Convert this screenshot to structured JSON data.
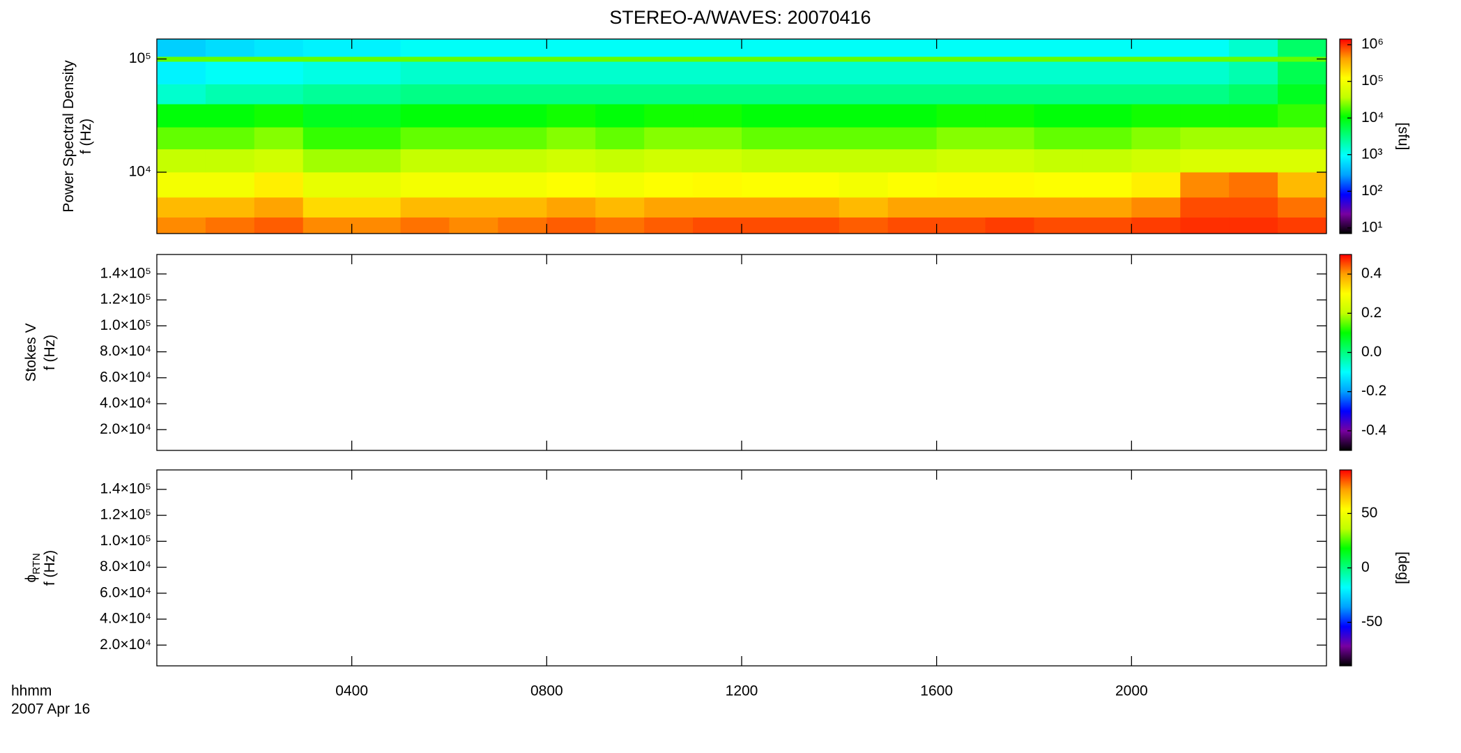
{
  "chart_data": [
    {
      "type": "spectrogram",
      "title": "STEREO-A/WAVES: 20070416",
      "ylabel": [
        "Power Spectral Density",
        "f (Hz)"
      ],
      "xlim": [
        0,
        24
      ],
      "xticks": [
        4,
        8,
        12,
        16,
        20
      ],
      "ylog": true,
      "ylim": [
        2870,
        150000
      ],
      "yticks": [
        {
          "value": 10000,
          "label": "10⁴"
        },
        {
          "value": 100000,
          "label": "10⁵"
        }
      ],
      "x_edges": [
        0,
        1,
        2,
        3,
        4,
        5,
        6,
        7,
        8,
        9,
        10,
        11,
        12,
        13,
        14,
        15,
        16,
        17,
        18,
        19,
        20,
        21,
        22,
        23,
        24
      ],
      "y_edges": [
        2870,
        4000,
        6000,
        10000,
        16000,
        25000,
        40000,
        60000,
        95000,
        105000,
        150000
      ],
      "values": [
        [
          500000.0,
          600000.0,
          700000.0,
          500000.0,
          500000.0,
          600000.0,
          500000.0,
          600000.0,
          700000.0,
          600000.0,
          700000.0,
          800000.0,
          800000.0,
          800000.0,
          700000.0,
          800000.0,
          800000.0,
          900000.0,
          800000.0,
          800000.0,
          900000.0,
          1000000.0,
          1000000.0,
          900000.0
        ],
        [
          300000.0,
          300000.0,
          400000.0,
          200000.0,
          200000.0,
          300000.0,
          300000.0,
          300000.0,
          400000.0,
          300000.0,
          400000.0,
          400000.0,
          400000.0,
          400000.0,
          300000.0,
          400000.0,
          400000.0,
          400000.0,
          400000.0,
          400000.0,
          500000.0,
          800000.0,
          800000.0,
          600000.0
        ],
        [
          100000.0,
          100000.0,
          150000.0,
          80000.0,
          80000.0,
          100000.0,
          100000.0,
          100000.0,
          120000.0,
          100000.0,
          120000.0,
          130000.0,
          120000.0,
          120000.0,
          100000.0,
          120000.0,
          130000.0,
          130000.0,
          120000.0,
          120000.0,
          150000.0,
          500000.0,
          600000.0,
          300000.0
        ],
        [
          40000.0,
          40000.0,
          50000.0,
          30000.0,
          30000.0,
          40000.0,
          40000.0,
          40000.0,
          50000.0,
          40000.0,
          50000.0,
          50000.0,
          40000.0,
          40000.0,
          40000.0,
          40000.0,
          50000.0,
          50000.0,
          40000.0,
          40000.0,
          50000.0,
          60000.0,
          60000.0,
          60000.0
        ],
        [
          20000.0,
          20000.0,
          25000.0,
          15000.0,
          15000.0,
          20000.0,
          20000.0,
          20000.0,
          25000.0,
          20000.0,
          25000.0,
          25000.0,
          20000.0,
          20000.0,
          20000.0,
          20000.0,
          25000.0,
          25000.0,
          20000.0,
          20000.0,
          25000.0,
          30000.0,
          30000.0,
          30000.0
        ],
        [
          10000.0,
          10000.0,
          12000.0,
          8000.0,
          8000.0,
          10000.0,
          10000.0,
          10000.0,
          12000.0,
          10000.0,
          12000.0,
          12000.0,
          10000.0,
          10000.0,
          10000.0,
          10000.0,
          12000.0,
          12000.0,
          10000.0,
          10000.0,
          12000.0,
          12000.0,
          12000.0,
          15000.0
        ],
        [
          1500.0,
          2000.0,
          2000.0,
          2500.0,
          2500.0,
          3000.0,
          3000.0,
          3000.0,
          3000.0,
          3000.0,
          3000.0,
          3000.0,
          3000.0,
          3000.0,
          3000.0,
          3000.0,
          3000.0,
          3000.0,
          3000.0,
          3000.0,
          3000.0,
          3000.0,
          4000.0,
          8000.0
        ],
        [
          800,
          1000.0,
          1000.0,
          1200.0,
          1200.0,
          1500.0,
          1500.0,
          1500.0,
          1500.0,
          1500.0,
          1500.0,
          1500.0,
          1500.0,
          1500.0,
          1500.0,
          1500.0,
          1500.0,
          1500.0,
          1500.0,
          1500.0,
          1500.0,
          1500.0,
          2000.0,
          5000.0
        ],
        [
          20000.0,
          20000.0,
          20000.0,
          20000.0,
          20000.0,
          20000.0,
          20000.0,
          20000.0,
          20000.0,
          20000.0,
          20000.0,
          20000.0,
          20000.0,
          20000.0,
          20000.0,
          20000.0,
          20000.0,
          20000.0,
          20000.0,
          20000.0,
          20000.0,
          20000.0,
          20000.0,
          20000.0
        ],
        [
          500,
          600,
          700,
          800,
          800,
          1000.0,
          1000.0,
          1000.0,
          1000.0,
          1000.0,
          1000.0,
          1000.0,
          1000.0,
          1000.0,
          1000.0,
          1000.0,
          1000.0,
          1000.0,
          1000.0,
          1000.0,
          1000.0,
          1000.0,
          1500.0,
          4000.0
        ]
      ],
      "colormap": [
        "#000000",
        "#7800a0",
        "#0000ff",
        "#00a0ff",
        "#00ffff",
        "#00ff80",
        "#00ff00",
        "#c0ff00",
        "#ffff00",
        "#ffa000",
        "#ff0000"
      ],
      "clog": true,
      "clim": [
        7,
        1430000
      ],
      "cticks": [
        {
          "value": 10,
          "label": "10¹"
        },
        {
          "value": 100,
          "label": "10²"
        },
        {
          "value": 1000,
          "label": "10³"
        },
        {
          "value": 10000,
          "label": "10⁴"
        },
        {
          "value": 100000,
          "label": "10⁵"
        },
        {
          "value": 1000000,
          "label": "10⁶"
        }
      ],
      "clabel": "[sfu]"
    },
    {
      "type": "spectrogram",
      "ylabel": [
        "Stokes V",
        "f (Hz)"
      ],
      "xlim": [
        0,
        24
      ],
      "xticks": [
        4,
        8,
        12,
        16,
        20
      ],
      "ylog": false,
      "ylim": [
        4000,
        155000
      ],
      "yticks": [
        {
          "value": 20000,
          "label": "2.0×10⁴"
        },
        {
          "value": 40000,
          "label": "4.0×10⁴"
        },
        {
          "value": 60000,
          "label": "6.0×10⁴"
        },
        {
          "value": 80000,
          "label": "8.0×10⁴"
        },
        {
          "value": 100000,
          "label": "1.0×10⁵"
        },
        {
          "value": 120000,
          "label": "1.2×10⁵"
        },
        {
          "value": 140000,
          "label": "1.4×10⁵"
        }
      ],
      "colormap": [
        "#000000",
        "#7800a0",
        "#0000ff",
        "#00a0ff",
        "#00ffff",
        "#00ff80",
        "#00ff00",
        "#c0ff00",
        "#ffff00",
        "#ffa000",
        "#ff0000"
      ],
      "clog": false,
      "clim": [
        -0.5,
        0.5
      ],
      "cticks": [
        -0.4,
        -0.2,
        {
          "value": 0,
          "label": "0.0"
        },
        0.2,
        0.4
      ]
    },
    {
      "type": "spectrogram",
      "ylabel": [
        "ϕ",
        "f (Hz)"
      ],
      "ylabel_sub": "RTN",
      "xlim": [
        0,
        24
      ],
      "xticks": [
        {
          "value": 4,
          "label": "0400"
        },
        {
          "value": 8,
          "label": "0800"
        },
        {
          "value": 12,
          "label": "1200"
        },
        {
          "value": 16,
          "label": "1600"
        },
        {
          "value": 20,
          "label": "2000"
        }
      ],
      "xlabel": "hhmm",
      "xlabel_date": "2007 Apr 16",
      "ylog": false,
      "ylim": [
        4000,
        155000
      ],
      "yticks": [
        {
          "value": 20000,
          "label": "2.0×10⁴"
        },
        {
          "value": 40000,
          "label": "4.0×10⁴"
        },
        {
          "value": 60000,
          "label": "6.0×10⁴"
        },
        {
          "value": 80000,
          "label": "8.0×10⁴"
        },
        {
          "value": 100000,
          "label": "1.0×10⁵"
        },
        {
          "value": 120000,
          "label": "1.2×10⁵"
        },
        {
          "value": 140000,
          "label": "1.4×10⁵"
        }
      ],
      "colormap": [
        "#000000",
        "#7800a0",
        "#0000ff",
        "#00a0ff",
        "#00ffff",
        "#00ff80",
        "#00ff00",
        "#c0ff00",
        "#ffff00",
        "#ffa000",
        "#ff0000"
      ],
      "clog": false,
      "clim": [
        -90,
        90
      ],
      "cticks": [
        -50,
        0,
        50
      ],
      "clabel": "[deg]"
    }
  ]
}
